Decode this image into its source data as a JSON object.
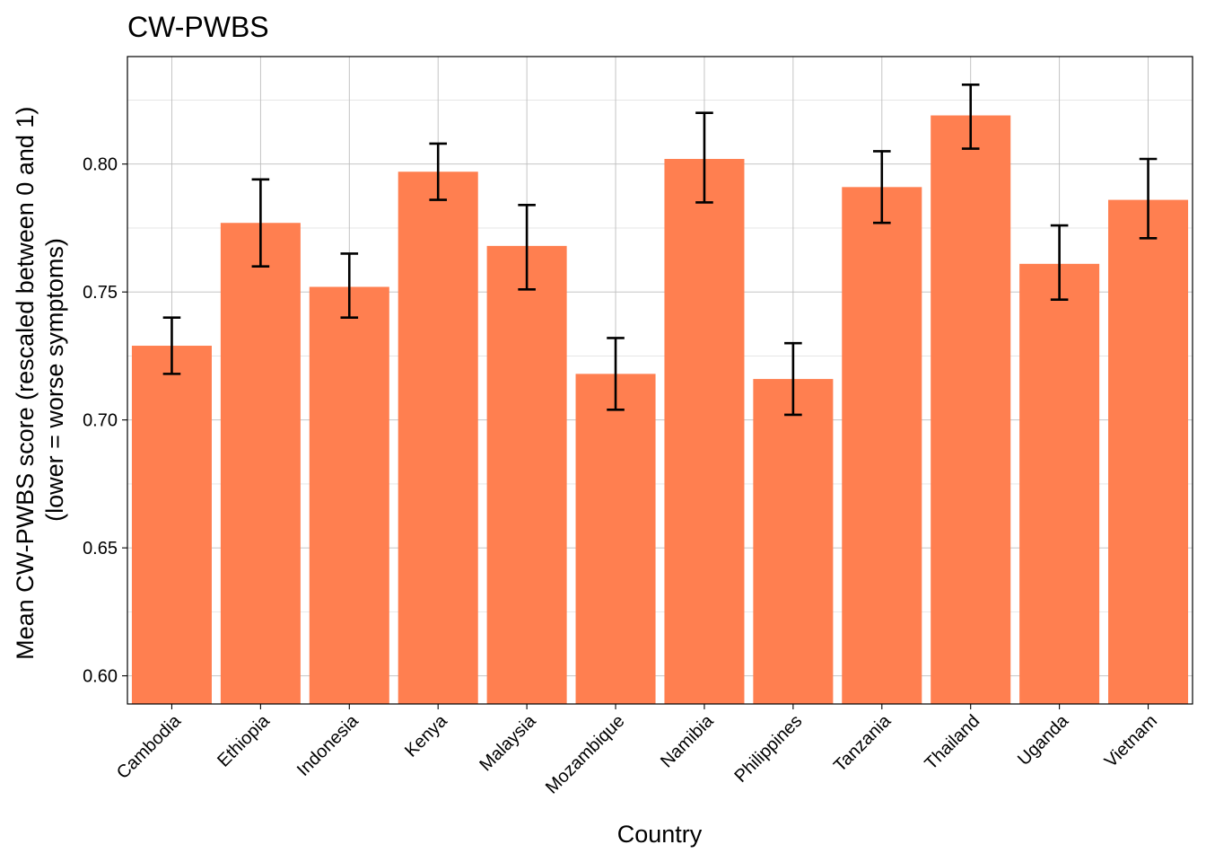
{
  "chart_data": {
    "type": "bar",
    "title": "CW-PWBS",
    "xlabel": "Country",
    "ylabel_lines": [
      "Mean CW-PWBS score (rescaled between 0 and 1)",
      "(lower = worse symptoms)"
    ],
    "categories": [
      "Cambodia",
      "Ethiopia",
      "Indonesia",
      "Kenya",
      "Malaysia",
      "Mozambique",
      "Namibia",
      "Philippines",
      "Tanzania",
      "Thailand",
      "Uganda",
      "Vietnam"
    ],
    "values": [
      0.729,
      0.777,
      0.752,
      0.797,
      0.768,
      0.718,
      0.802,
      0.716,
      0.791,
      0.819,
      0.761,
      0.786
    ],
    "error_low": [
      0.718,
      0.76,
      0.74,
      0.786,
      0.751,
      0.704,
      0.785,
      0.702,
      0.777,
      0.806,
      0.747,
      0.771
    ],
    "error_high": [
      0.74,
      0.794,
      0.765,
      0.808,
      0.784,
      0.732,
      0.82,
      0.73,
      0.805,
      0.831,
      0.776,
      0.802
    ],
    "ylim": [
      0.589,
      0.842
    ],
    "yticks": [
      0.6,
      0.65,
      0.7,
      0.75,
      0.8
    ],
    "ytick_labels": [
      "0.60",
      "0.65",
      "0.70",
      "0.75",
      "0.80"
    ],
    "grid": true,
    "bar_color": "#FF7F50",
    "error_color": "#000000",
    "grid_color": "#bdbdbd"
  }
}
